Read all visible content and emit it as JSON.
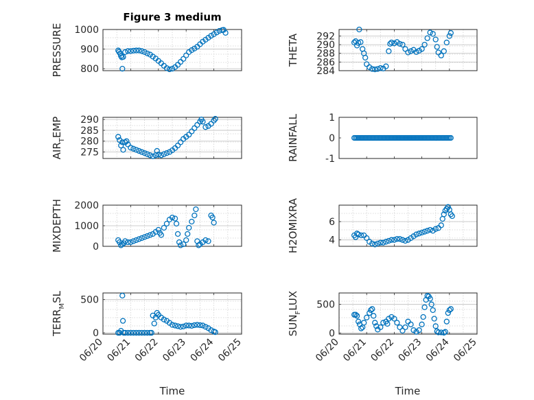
{
  "figure_title": "Figure 3 medium",
  "marker_color": "#0072bd",
  "chart_data": [
    {
      "type": "scatter",
      "ylabel": "PRESSURE",
      "ylim": [
        790,
        1000
      ],
      "ytick_values": [
        800,
        900,
        1000
      ],
      "ytick_labels": [
        "800",
        "900",
        "1000"
      ],
      "xlim": [
        "06/20",
        "06/25"
      ],
      "grid": true,
      "points": [
        [
          0.55,
          893
        ],
        [
          0.58,
          886
        ],
        [
          0.62,
          878
        ],
        [
          0.65,
          865
        ],
        [
          0.68,
          858
        ],
        [
          0.7,
          800
        ],
        [
          0.73,
          860
        ],
        [
          0.8,
          885
        ],
        [
          0.9,
          890
        ],
        [
          1.0,
          890
        ],
        [
          1.1,
          892
        ],
        [
          1.2,
          893
        ],
        [
          1.3,
          893
        ],
        [
          1.4,
          890
        ],
        [
          1.5,
          885
        ],
        [
          1.6,
          878
        ],
        [
          1.7,
          872
        ],
        [
          1.8,
          862
        ],
        [
          1.9,
          852
        ],
        [
          2.0,
          840
        ],
        [
          2.1,
          828
        ],
        [
          2.2,
          815
        ],
        [
          2.3,
          803
        ],
        [
          2.4,
          797
        ],
        [
          2.5,
          800
        ],
        [
          2.6,
          808
        ],
        [
          2.7,
          820
        ],
        [
          2.8,
          835
        ],
        [
          2.9,
          850
        ],
        [
          3.0,
          868
        ],
        [
          3.1,
          885
        ],
        [
          3.2,
          895
        ],
        [
          3.3,
          903
        ],
        [
          3.4,
          912
        ],
        [
          3.5,
          925
        ],
        [
          3.6,
          938
        ],
        [
          3.7,
          948
        ],
        [
          3.8,
          958
        ],
        [
          3.9,
          968
        ],
        [
          4.0,
          976
        ],
        [
          4.1,
          985
        ],
        [
          4.2,
          993
        ],
        [
          4.3,
          997
        ],
        [
          4.35,
          998
        ],
        [
          4.42,
          983
        ]
      ]
    },
    {
      "type": "scatter",
      "ylabel": "THETA",
      "ylim": [
        284,
        293.5
      ],
      "ytick_values": [
        284,
        286,
        288,
        290,
        292
      ],
      "ytick_labels": [
        "284",
        "286",
        "288",
        "290",
        "292"
      ],
      "xlim": [
        "06/20",
        "06/25"
      ],
      "grid": true,
      "points": [
        [
          0.55,
          290.5
        ],
        [
          0.6,
          290.8
        ],
        [
          0.65,
          289.8
        ],
        [
          0.7,
          290.4
        ],
        [
          0.73,
          293.5
        ],
        [
          0.78,
          290.6
        ],
        [
          0.85,
          289
        ],
        [
          0.9,
          288
        ],
        [
          0.95,
          287
        ],
        [
          1.0,
          285.5
        ],
        [
          1.1,
          284.8
        ],
        [
          1.2,
          284.4
        ],
        [
          1.3,
          284.3
        ],
        [
          1.4,
          284.4
        ],
        [
          1.5,
          284.6
        ],
        [
          1.6,
          284.5
        ],
        [
          1.7,
          285
        ],
        [
          1.8,
          288.5
        ],
        [
          1.85,
          290.2
        ],
        [
          1.9,
          290.5
        ],
        [
          2.0,
          290.3
        ],
        [
          2.1,
          290.6
        ],
        [
          2.2,
          290.2
        ],
        [
          2.3,
          290
        ],
        [
          2.4,
          289
        ],
        [
          2.5,
          288.2
        ],
        [
          2.6,
          288.5
        ],
        [
          2.7,
          288.8
        ],
        [
          2.8,
          288.3
        ],
        [
          2.9,
          288.6
        ],
        [
          3.0,
          289
        ],
        [
          3.1,
          290
        ],
        [
          3.2,
          291.5
        ],
        [
          3.3,
          292.8
        ],
        [
          3.4,
          292.5
        ],
        [
          3.5,
          291.2
        ],
        [
          3.55,
          289.5
        ],
        [
          3.6,
          288.2
        ],
        [
          3.7,
          287.5
        ],
        [
          3.8,
          288.5
        ],
        [
          3.9,
          290.5
        ],
        [
          4.0,
          292
        ],
        [
          4.05,
          292.7
        ]
      ]
    },
    {
      "type": "scatter",
      "ylabel": "AIR_TEMP",
      "ylabel_main": "AIR",
      "ylabel_sub": "T",
      "ylabel_rest": "EMP",
      "ylim": [
        272,
        291
      ],
      "ytick_values": [
        275,
        280,
        285,
        290
      ],
      "ytick_labels": [
        "275",
        "280",
        "285",
        "290"
      ],
      "xlim": [
        "06/20",
        "06/25"
      ],
      "grid": true,
      "points": [
        [
          0.55,
          282
        ],
        [
          0.6,
          280.5
        ],
        [
          0.65,
          278
        ],
        [
          0.7,
          279.5
        ],
        [
          0.73,
          276
        ],
        [
          0.8,
          279.5
        ],
        [
          0.85,
          280
        ],
        [
          0.9,
          278.5
        ],
        [
          1.0,
          277
        ],
        [
          1.1,
          276.5
        ],
        [
          1.2,
          276
        ],
        [
          1.3,
          275.5
        ],
        [
          1.4,
          275
        ],
        [
          1.5,
          274.5
        ],
        [
          1.6,
          274
        ],
        [
          1.7,
          273.5
        ],
        [
          1.8,
          273
        ],
        [
          1.9,
          273.5
        ],
        [
          1.95,
          275.5
        ],
        [
          2.0,
          273.8
        ],
        [
          2.1,
          273.5
        ],
        [
          2.2,
          274
        ],
        [
          2.3,
          274.5
        ],
        [
          2.4,
          275
        ],
        [
          2.5,
          275.8
        ],
        [
          2.6,
          276.8
        ],
        [
          2.7,
          278
        ],
        [
          2.8,
          279.5
        ],
        [
          2.9,
          281
        ],
        [
          3.0,
          282
        ],
        [
          3.1,
          283
        ],
        [
          3.2,
          284.5
        ],
        [
          3.3,
          286
        ],
        [
          3.4,
          287.5
        ],
        [
          3.5,
          289
        ],
        [
          3.55,
          290
        ],
        [
          3.6,
          289
        ],
        [
          3.7,
          286.5
        ],
        [
          3.8,
          287
        ],
        [
          3.9,
          288
        ],
        [
          4.0,
          289.5
        ],
        [
          4.05,
          290.3
        ]
      ]
    },
    {
      "type": "scatter",
      "ylabel": "RAINFALL",
      "ylim": [
        -1,
        1
      ],
      "ytick_values": [
        -1,
        0,
        1
      ],
      "ytick_labels": [
        "-1",
        "0",
        "1"
      ],
      "xlim": [
        "06/20",
        "06/25"
      ],
      "grid": false,
      "x_start": 0.55,
      "x_end": 4.08,
      "x_step": 0.05,
      "constant_value": 0
    },
    {
      "type": "scatter",
      "ylabel": "MIXDEPTH",
      "ylim": [
        0,
        2000
      ],
      "ytick_values": [
        0,
        1000,
        2000
      ],
      "ytick_labels": [
        "0",
        "1000",
        "2000"
      ],
      "xlim": [
        "06/20",
        "06/25"
      ],
      "grid": true,
      "points": [
        [
          0.55,
          300
        ],
        [
          0.6,
          200
        ],
        [
          0.65,
          50
        ],
        [
          0.7,
          100
        ],
        [
          0.75,
          150
        ],
        [
          0.8,
          250
        ],
        [
          0.9,
          200
        ],
        [
          1.0,
          200
        ],
        [
          1.1,
          250
        ],
        [
          1.2,
          300
        ],
        [
          1.3,
          350
        ],
        [
          1.4,
          400
        ],
        [
          1.5,
          450
        ],
        [
          1.6,
          500
        ],
        [
          1.7,
          550
        ],
        [
          1.8,
          600
        ],
        [
          1.9,
          700
        ],
        [
          2.0,
          800
        ],
        [
          2.05,
          650
        ],
        [
          2.1,
          550
        ],
        [
          2.2,
          900
        ],
        [
          2.3,
          1100
        ],
        [
          2.4,
          1300
        ],
        [
          2.5,
          1400
        ],
        [
          2.6,
          1350
        ],
        [
          2.65,
          1100
        ],
        [
          2.7,
          600
        ],
        [
          2.75,
          200
        ],
        [
          2.8,
          50
        ],
        [
          2.9,
          100
        ],
        [
          3.0,
          300
        ],
        [
          3.05,
          600
        ],
        [
          3.1,
          900
        ],
        [
          3.2,
          1200
        ],
        [
          3.3,
          1500
        ],
        [
          3.35,
          1800
        ],
        [
          3.4,
          250
        ],
        [
          3.45,
          50
        ],
        [
          3.5,
          100
        ],
        [
          3.6,
          200
        ],
        [
          3.7,
          300
        ],
        [
          3.8,
          250
        ],
        [
          3.9,
          1500
        ],
        [
          3.95,
          1400
        ],
        [
          4.0,
          1150
        ]
      ]
    },
    {
      "type": "scatter",
      "ylabel": "H2OMIXRA",
      "ylim": [
        3.3,
        7.8
      ],
      "ytick_values": [
        4,
        6
      ],
      "ytick_labels": [
        "4",
        "6"
      ],
      "xlim": [
        "06/20",
        "06/25"
      ],
      "grid": true,
      "points": [
        [
          0.55,
          4.5
        ],
        [
          0.6,
          4.3
        ],
        [
          0.65,
          4.7
        ],
        [
          0.7,
          4.6
        ],
        [
          0.8,
          4.5
        ],
        [
          0.9,
          4.5
        ],
        [
          1.0,
          4.2
        ],
        [
          1.1,
          3.8
        ],
        [
          1.2,
          3.6
        ],
        [
          1.3,
          3.5
        ],
        [
          1.4,
          3.6
        ],
        [
          1.5,
          3.7
        ],
        [
          1.6,
          3.7
        ],
        [
          1.7,
          3.8
        ],
        [
          1.8,
          3.9
        ],
        [
          1.9,
          4.0
        ],
        [
          2.0,
          4.0
        ],
        [
          2.1,
          4.1
        ],
        [
          2.2,
          4.1
        ],
        [
          2.3,
          4.0
        ],
        [
          2.4,
          3.9
        ],
        [
          2.5,
          4.0
        ],
        [
          2.6,
          4.2
        ],
        [
          2.7,
          4.4
        ],
        [
          2.8,
          4.6
        ],
        [
          2.9,
          4.7
        ],
        [
          3.0,
          4.8
        ],
        [
          3.1,
          4.9
        ],
        [
          3.2,
          5.0
        ],
        [
          3.3,
          5.1
        ],
        [
          3.4,
          5.0
        ],
        [
          3.5,
          5.2
        ],
        [
          3.6,
          5.3
        ],
        [
          3.7,
          5.6
        ],
        [
          3.75,
          6.3
        ],
        [
          3.8,
          6.8
        ],
        [
          3.85,
          7.2
        ],
        [
          3.9,
          7.4
        ],
        [
          3.95,
          7.6
        ],
        [
          4.0,
          7.3
        ],
        [
          4.05,
          6.8
        ],
        [
          4.1,
          6.6
        ]
      ]
    },
    {
      "type": "scatter",
      "ylabel": "TERR_MSL",
      "ylabel_main": "TERR",
      "ylabel_sub": "M",
      "ylabel_rest": "SL",
      "ylim": [
        -20,
        600
      ],
      "ytick_values": [
        0,
        500
      ],
      "ytick_labels": [
        "0",
        "500"
      ],
      "xlim": [
        "06/20",
        "06/25"
      ],
      "grid": true,
      "points": [
        [
          0.55,
          0
        ],
        [
          0.6,
          0
        ],
        [
          0.65,
          30
        ],
        [
          0.7,
          560
        ],
        [
          0.72,
          180
        ],
        [
          0.75,
          0
        ],
        [
          0.8,
          0
        ],
        [
          0.9,
          0
        ],
        [
          1.0,
          0
        ],
        [
          1.1,
          0
        ],
        [
          1.2,
          0
        ],
        [
          1.3,
          0
        ],
        [
          1.4,
          0
        ],
        [
          1.5,
          0
        ],
        [
          1.6,
          0
        ],
        [
          1.7,
          0
        ],
        [
          1.75,
          0
        ],
        [
          1.8,
          260
        ],
        [
          1.85,
          140
        ],
        [
          1.9,
          230
        ],
        [
          1.95,
          300
        ],
        [
          2.0,
          270
        ],
        [
          2.1,
          230
        ],
        [
          2.2,
          200
        ],
        [
          2.3,
          180
        ],
        [
          2.4,
          150
        ],
        [
          2.5,
          120
        ],
        [
          2.6,
          110
        ],
        [
          2.7,
          100
        ],
        [
          2.8,
          90
        ],
        [
          2.9,
          95
        ],
        [
          3.0,
          110
        ],
        [
          3.1,
          110
        ],
        [
          3.2,
          105
        ],
        [
          3.3,
          115
        ],
        [
          3.4,
          120
        ],
        [
          3.5,
          115
        ],
        [
          3.6,
          110
        ],
        [
          3.7,
          90
        ],
        [
          3.8,
          70
        ],
        [
          3.9,
          40
        ],
        [
          4.0,
          20
        ],
        [
          4.05,
          10
        ]
      ]
    },
    {
      "type": "scatter",
      "ylabel": "SUN_FLUX",
      "ylabel_main": "SUN",
      "ylabel_sub": "F",
      "ylabel_rest": "LUX",
      "ylim": [
        -20,
        700
      ],
      "ytick_values": [
        0,
        500
      ],
      "ytick_labels": [
        "0",
        "500"
      ],
      "xlim": [
        "06/20",
        "06/25"
      ],
      "grid": true,
      "points": [
        [
          0.55,
          320
        ],
        [
          0.6,
          320
        ],
        [
          0.65,
          300
        ],
        [
          0.7,
          200
        ],
        [
          0.75,
          150
        ],
        [
          0.8,
          80
        ],
        [
          0.85,
          100
        ],
        [
          0.9,
          180
        ],
        [
          1.0,
          270
        ],
        [
          1.1,
          350
        ],
        [
          1.15,
          400
        ],
        [
          1.2,
          420
        ],
        [
          1.25,
          300
        ],
        [
          1.3,
          180
        ],
        [
          1.35,
          120
        ],
        [
          1.4,
          60
        ],
        [
          1.5,
          100
        ],
        [
          1.6,
          180
        ],
        [
          1.7,
          200
        ],
        [
          1.75,
          160
        ],
        [
          1.8,
          250
        ],
        [
          1.9,
          280
        ],
        [
          2.0,
          250
        ],
        [
          2.1,
          180
        ],
        [
          2.2,
          100
        ],
        [
          2.3,
          40
        ],
        [
          2.4,
          100
        ],
        [
          2.5,
          200
        ],
        [
          2.6,
          150
        ],
        [
          2.7,
          50
        ],
        [
          2.8,
          20
        ],
        [
          2.9,
          50
        ],
        [
          3.0,
          150
        ],
        [
          3.05,
          280
        ],
        [
          3.1,
          450
        ],
        [
          3.15,
          580
        ],
        [
          3.2,
          650
        ],
        [
          3.25,
          640
        ],
        [
          3.3,
          600
        ],
        [
          3.35,
          500
        ],
        [
          3.4,
          400
        ],
        [
          3.45,
          250
        ],
        [
          3.5,
          120
        ],
        [
          3.55,
          30
        ],
        [
          3.6,
          10
        ],
        [
          3.7,
          10
        ],
        [
          3.8,
          5
        ],
        [
          3.85,
          20
        ],
        [
          3.9,
          200
        ],
        [
          3.95,
          350
        ],
        [
          4.0,
          400
        ],
        [
          4.05,
          420
        ]
      ]
    }
  ],
  "x_ticks": [
    "06/20",
    "06/21",
    "06/22",
    "06/23",
    "06/24",
    "06/25"
  ],
  "x_axis_labels": [
    "Time",
    "Time"
  ]
}
